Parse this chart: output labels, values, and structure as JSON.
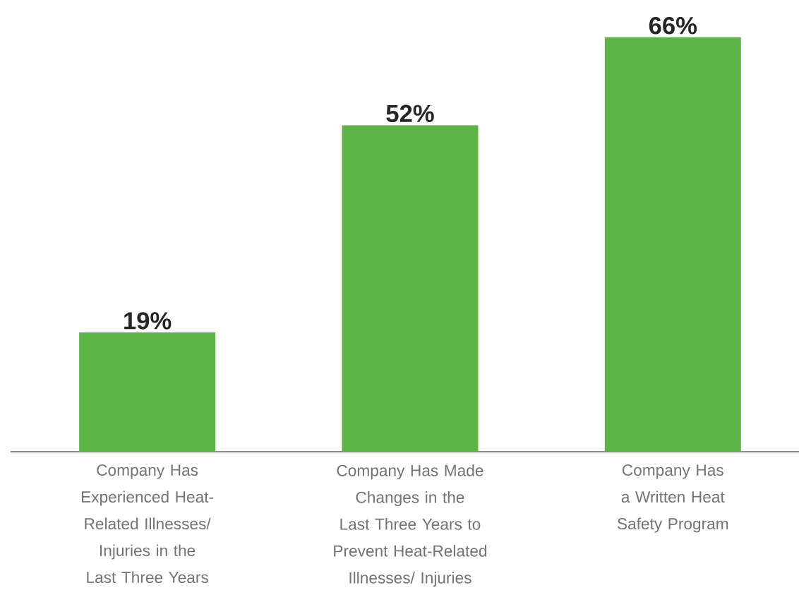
{
  "chart_data": {
    "type": "bar",
    "categories": [
      "Company Has Experienced Heat-Related Illnesses/ Injuries in the Last Three Years",
      "Company Has Made Changes in the Last Three Years to Prevent Heat-Related Illnesses/ Injuries",
      "Company Has a Written Heat Safety Program"
    ],
    "values": [
      19,
      52,
      66
    ],
    "value_labels": [
      "19%",
      "52%",
      "66%"
    ],
    "color": "#5cb446"
  }
}
